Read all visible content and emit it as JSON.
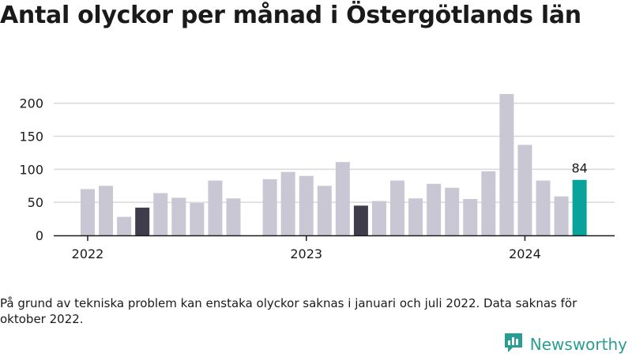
{
  "title": "Antal olyckor per månad i Östergötlands län",
  "note": "På grund av tekniska problem kan enstaka olyckor saknas i januari och juli 2022. Data saknas för oktober 2022.",
  "brand": "Newsworthy",
  "colors": {
    "bar": "#c9c7d3",
    "dark": "#3f3d4b",
    "highlight": "#0aa39b",
    "grid": "#d9d9d9",
    "axis": "#1a1a1a"
  },
  "chart_data": {
    "type": "bar",
    "ylim": [
      0,
      220
    ],
    "yticks": [
      0,
      50,
      100,
      150,
      200
    ],
    "xtick_labels": [
      {
        "label": "2022",
        "index": 0
      },
      {
        "label": "2023",
        "index": 12
      },
      {
        "label": "2024",
        "index": 24
      }
    ],
    "bars": [
      {
        "month": "2022-01",
        "value": 70,
        "style": "bar"
      },
      {
        "month": "2022-02",
        "value": 75,
        "style": "bar"
      },
      {
        "month": "2022-03",
        "value": 28,
        "style": "bar"
      },
      {
        "month": "2022-04",
        "value": 42,
        "style": "dark"
      },
      {
        "month": "2022-05",
        "value": 64,
        "style": "bar"
      },
      {
        "month": "2022-06",
        "value": 57,
        "style": "bar"
      },
      {
        "month": "2022-07",
        "value": 49,
        "style": "bar"
      },
      {
        "month": "2022-08",
        "value": 83,
        "style": "bar"
      },
      {
        "month": "2022-09",
        "value": 56,
        "style": "bar"
      },
      {
        "month": "2022-10",
        "value": null,
        "style": "bar"
      },
      {
        "month": "2022-11",
        "value": 85,
        "style": "bar"
      },
      {
        "month": "2022-12",
        "value": 96,
        "style": "bar"
      },
      {
        "month": "2023-01",
        "value": 90,
        "style": "bar"
      },
      {
        "month": "2023-02",
        "value": 75,
        "style": "bar"
      },
      {
        "month": "2023-03",
        "value": 111,
        "style": "bar"
      },
      {
        "month": "2023-04",
        "value": 45,
        "style": "dark"
      },
      {
        "month": "2023-05",
        "value": 52,
        "style": "bar"
      },
      {
        "month": "2023-06",
        "value": 83,
        "style": "bar"
      },
      {
        "month": "2023-07",
        "value": 56,
        "style": "bar"
      },
      {
        "month": "2023-08",
        "value": 78,
        "style": "bar"
      },
      {
        "month": "2023-09",
        "value": 72,
        "style": "bar"
      },
      {
        "month": "2023-10",
        "value": 55,
        "style": "bar"
      },
      {
        "month": "2023-11",
        "value": 97,
        "style": "bar"
      },
      {
        "month": "2023-12",
        "value": 214,
        "style": "bar"
      },
      {
        "month": "2024-01",
        "value": 137,
        "style": "bar"
      },
      {
        "month": "2024-02",
        "value": 83,
        "style": "bar"
      },
      {
        "month": "2024-03",
        "value": 59,
        "style": "bar"
      },
      {
        "month": "2024-04",
        "value": 84,
        "style": "highlight",
        "label": "84"
      }
    ]
  }
}
